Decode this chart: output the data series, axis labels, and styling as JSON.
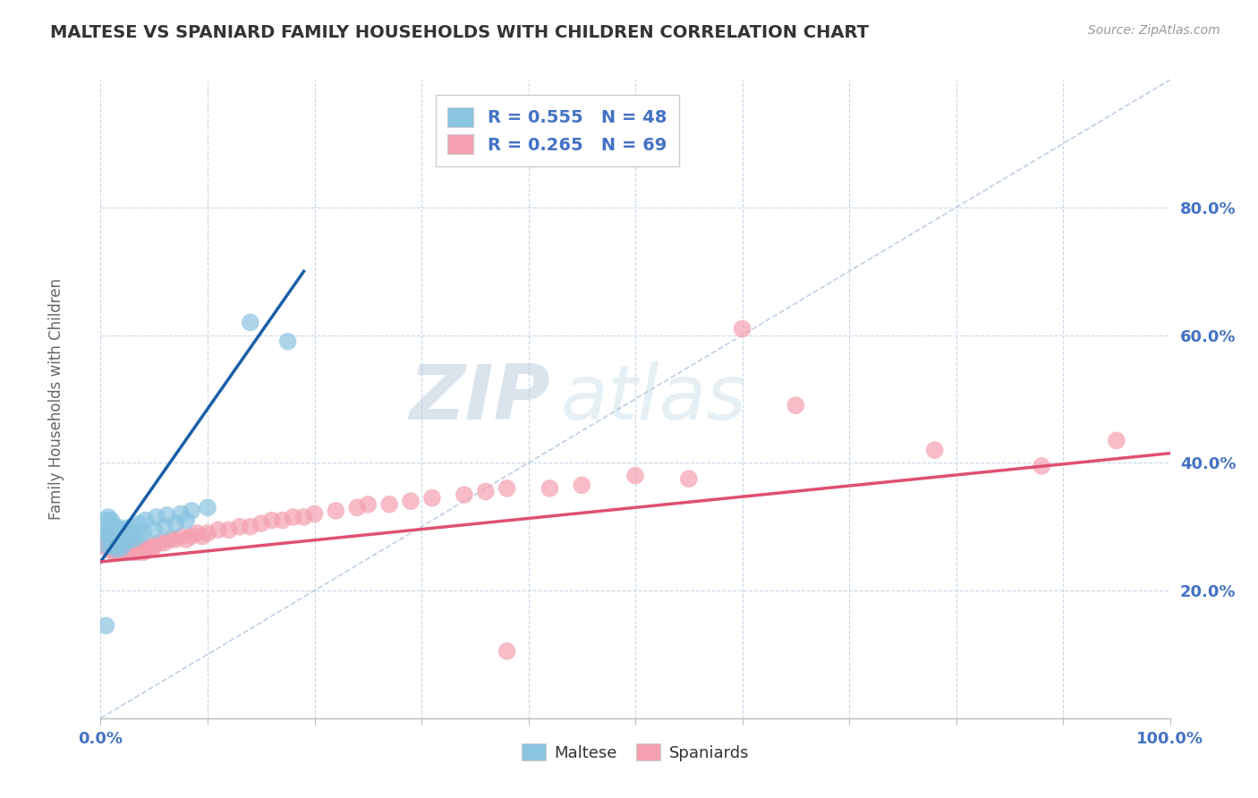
{
  "title": "MALTESE VS SPANIARD FAMILY HOUSEHOLDS WITH CHILDREN CORRELATION CHART",
  "source": "Source: ZipAtlas.com",
  "ylabel": "Family Households with Children",
  "xlim": [
    0.0,
    1.0
  ],
  "ylim": [
    0.0,
    1.0
  ],
  "xticks": [
    0.0,
    0.1,
    0.2,
    0.3,
    0.4,
    0.5,
    0.6,
    0.7,
    0.8,
    0.9,
    1.0
  ],
  "yticks": [
    0.0,
    0.2,
    0.4,
    0.6,
    0.8
  ],
  "xtick_labels": [
    "0.0%",
    "",
    "",
    "",
    "",
    "",
    "",
    "",
    "",
    "",
    "100.0%"
  ],
  "ytick_labels": [
    "",
    "20.0%",
    "40.0%",
    "60.0%",
    "80.0%"
  ],
  "maltese_color": "#89c4e1",
  "spaniard_color": "#f4a0b0",
  "maltese_R": 0.555,
  "maltese_N": 48,
  "spaniard_R": 0.265,
  "spaniard_N": 69,
  "legend_label_maltese": "Maltese",
  "legend_label_spaniard": "Spaniards",
  "watermark_zip": "ZIP",
  "watermark_atlas": "atlas",
  "maltese_line_x": [
    0.0,
    0.19
  ],
  "maltese_line_y": [
    0.245,
    0.7
  ],
  "spaniard_line_x": [
    0.0,
    1.0
  ],
  "spaniard_line_y": [
    0.245,
    0.415
  ],
  "diag_line_x": [
    0.0,
    1.0
  ],
  "diag_line_y": [
    0.0,
    1.0
  ],
  "bg_color": "#ffffff",
  "grid_color": "#c8d8e8",
  "title_color": "#333333",
  "axis_label_color": "#666666",
  "tick_label_color": "#4472c4",
  "maltese_trend_color": "#1a5fa8",
  "spaniard_trend_color": "#e05070",
  "maltese_scatter_x": [
    0.005,
    0.005,
    0.006,
    0.007,
    0.007,
    0.008,
    0.01,
    0.01,
    0.01,
    0.011,
    0.011,
    0.012,
    0.012,
    0.013,
    0.015,
    0.015,
    0.015,
    0.016,
    0.016,
    0.018,
    0.018,
    0.019,
    0.02,
    0.02,
    0.021,
    0.022,
    0.025,
    0.025,
    0.026,
    0.03,
    0.03,
    0.031,
    0.035,
    0.036,
    0.04,
    0.042,
    0.05,
    0.052,
    0.06,
    0.062,
    0.07,
    0.075,
    0.08,
    0.085,
    0.1,
    0.14,
    0.175,
    0.005
  ],
  "maltese_scatter_y": [
    0.29,
    0.31,
    0.27,
    0.295,
    0.315,
    0.285,
    0.27,
    0.295,
    0.31,
    0.28,
    0.3,
    0.275,
    0.295,
    0.285,
    0.265,
    0.285,
    0.3,
    0.27,
    0.29,
    0.275,
    0.295,
    0.285,
    0.268,
    0.288,
    0.275,
    0.292,
    0.278,
    0.298,
    0.288,
    0.28,
    0.3,
    0.29,
    0.285,
    0.305,
    0.29,
    0.31,
    0.295,
    0.315,
    0.3,
    0.318,
    0.305,
    0.32,
    0.31,
    0.325,
    0.33,
    0.62,
    0.59,
    0.145
  ],
  "spaniard_scatter_x": [
    0.005,
    0.006,
    0.007,
    0.008,
    0.009,
    0.01,
    0.011,
    0.012,
    0.013,
    0.014,
    0.015,
    0.016,
    0.017,
    0.018,
    0.019,
    0.02,
    0.021,
    0.022,
    0.024,
    0.025,
    0.028,
    0.03,
    0.032,
    0.034,
    0.036,
    0.04,
    0.042,
    0.045,
    0.048,
    0.05,
    0.055,
    0.06,
    0.065,
    0.07,
    0.075,
    0.08,
    0.085,
    0.09,
    0.095,
    0.1,
    0.11,
    0.12,
    0.13,
    0.14,
    0.15,
    0.16,
    0.17,
    0.18,
    0.19,
    0.2,
    0.22,
    0.24,
    0.25,
    0.27,
    0.29,
    0.31,
    0.34,
    0.36,
    0.38,
    0.42,
    0.45,
    0.5,
    0.55,
    0.6,
    0.65,
    0.78,
    0.88,
    0.95,
    0.38
  ],
  "spaniard_scatter_y": [
    0.27,
    0.28,
    0.265,
    0.275,
    0.285,
    0.265,
    0.275,
    0.26,
    0.27,
    0.28,
    0.26,
    0.27,
    0.265,
    0.275,
    0.26,
    0.26,
    0.265,
    0.27,
    0.26,
    0.265,
    0.27,
    0.26,
    0.27,
    0.26,
    0.27,
    0.26,
    0.265,
    0.27,
    0.265,
    0.27,
    0.275,
    0.275,
    0.28,
    0.28,
    0.285,
    0.28,
    0.285,
    0.29,
    0.285,
    0.29,
    0.295,
    0.295,
    0.3,
    0.3,
    0.305,
    0.31,
    0.31,
    0.315,
    0.315,
    0.32,
    0.325,
    0.33,
    0.335,
    0.335,
    0.34,
    0.345,
    0.35,
    0.355,
    0.36,
    0.36,
    0.365,
    0.38,
    0.375,
    0.61,
    0.49,
    0.42,
    0.395,
    0.435,
    0.105
  ]
}
